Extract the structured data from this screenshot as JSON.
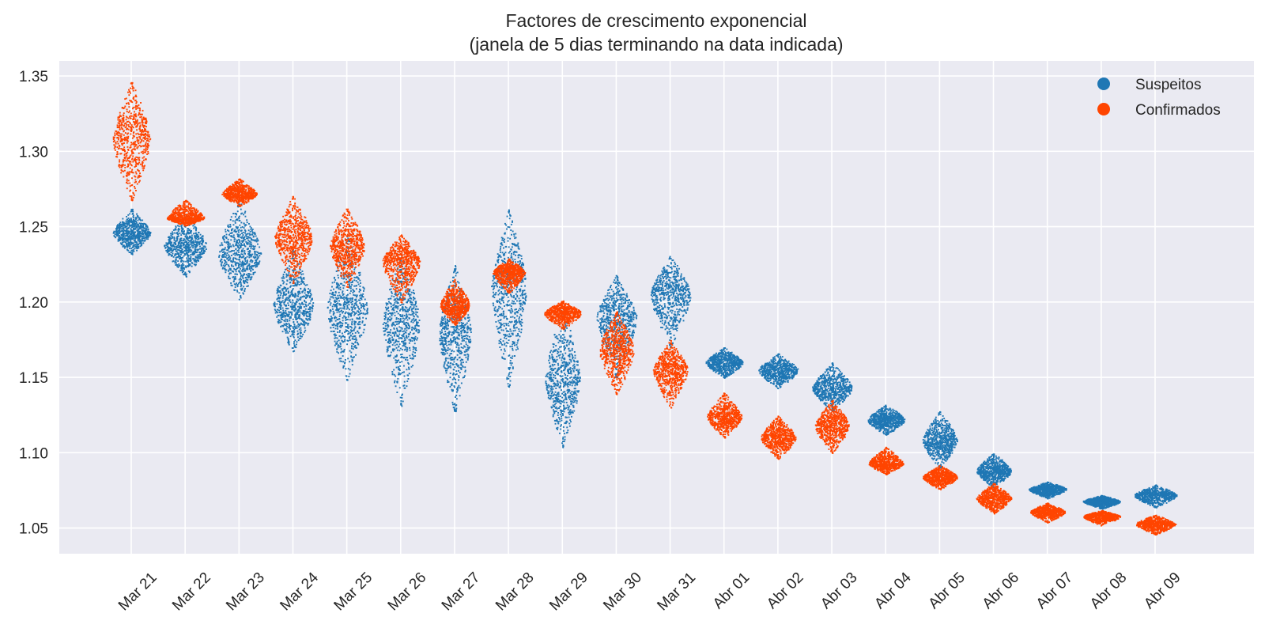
{
  "chart_data": {
    "type": "scatter",
    "style": "swarm / strip distribution per date",
    "title": "Factores de crescimento exponencial",
    "subtitle": "(janela de 5 dias terminando na data indicada)",
    "xlabel": "",
    "ylabel": "",
    "ylim": [
      1.033,
      1.36
    ],
    "yticks": [
      "1.05",
      "1.10",
      "1.15",
      "1.20",
      "1.25",
      "1.30",
      "1.35"
    ],
    "ytick_values": [
      1.05,
      1.1,
      1.15,
      1.2,
      1.25,
      1.3,
      1.35
    ],
    "categories": [
      "Mar 21",
      "Mar 22",
      "Mar 23",
      "Mar 24",
      "Mar 25",
      "Mar 26",
      "Mar 27",
      "Mar 28",
      "Mar 29",
      "Mar 30",
      "Mar 31",
      "Abr 01",
      "Abr 02",
      "Abr 03",
      "Abr 04",
      "Abr 05",
      "Abr 06",
      "Abr 07",
      "Abr 08",
      "Abr 09"
    ],
    "grid": true,
    "legend_position": "top-right",
    "background_color": "#eaeaf2",
    "series": [
      {
        "name": "Suspeitos",
        "color": "#1f77b4",
        "center": [
          1.246,
          1.238,
          1.232,
          1.198,
          1.195,
          1.186,
          1.18,
          1.21,
          1.148,
          1.19,
          1.205,
          1.16,
          1.155,
          1.143,
          1.122,
          1.108,
          1.088,
          1.076,
          1.068,
          1.072
        ],
        "low": [
          1.232,
          1.217,
          1.202,
          1.167,
          1.148,
          1.131,
          1.126,
          1.142,
          1.104,
          1.15,
          1.17,
          1.15,
          1.143,
          1.128,
          1.112,
          1.09,
          1.077,
          1.07,
          1.063,
          1.064
        ],
        "high": [
          1.262,
          1.258,
          1.268,
          1.235,
          1.245,
          1.232,
          1.225,
          1.262,
          1.198,
          1.218,
          1.231,
          1.17,
          1.166,
          1.16,
          1.132,
          1.128,
          1.1,
          1.081,
          1.072,
          1.079
        ],
        "spread": [
          0.7,
          0.8,
          0.8,
          0.75,
          0.75,
          0.7,
          0.6,
          0.65,
          0.65,
          0.75,
          0.75,
          0.7,
          0.75,
          0.75,
          0.7,
          0.65,
          0.65,
          0.7,
          0.7,
          0.8
        ]
      },
      {
        "name": "Confirmados",
        "color": "#ff4500",
        "center": [
          1.308,
          1.256,
          1.272,
          1.243,
          1.237,
          1.227,
          1.198,
          1.22,
          1.193,
          1.168,
          1.155,
          1.124,
          1.11,
          1.118,
          1.093,
          1.084,
          1.07,
          1.061,
          1.058,
          1.053
        ],
        "low": [
          1.267,
          1.251,
          1.264,
          1.212,
          1.21,
          1.2,
          1.185,
          1.206,
          1.182,
          1.139,
          1.13,
          1.11,
          1.096,
          1.1,
          1.086,
          1.076,
          1.06,
          1.054,
          1.052,
          1.046
        ],
        "high": [
          1.347,
          1.268,
          1.282,
          1.271,
          1.263,
          1.245,
          1.216,
          1.229,
          1.201,
          1.194,
          1.175,
          1.14,
          1.125,
          1.135,
          1.104,
          1.092,
          1.08,
          1.067,
          1.062,
          1.059
        ],
        "spread": [
          0.7,
          0.7,
          0.65,
          0.7,
          0.65,
          0.7,
          0.55,
          0.6,
          0.7,
          0.65,
          0.65,
          0.65,
          0.65,
          0.65,
          0.65,
          0.65,
          0.65,
          0.65,
          0.7,
          0.75
        ]
      }
    ]
  }
}
